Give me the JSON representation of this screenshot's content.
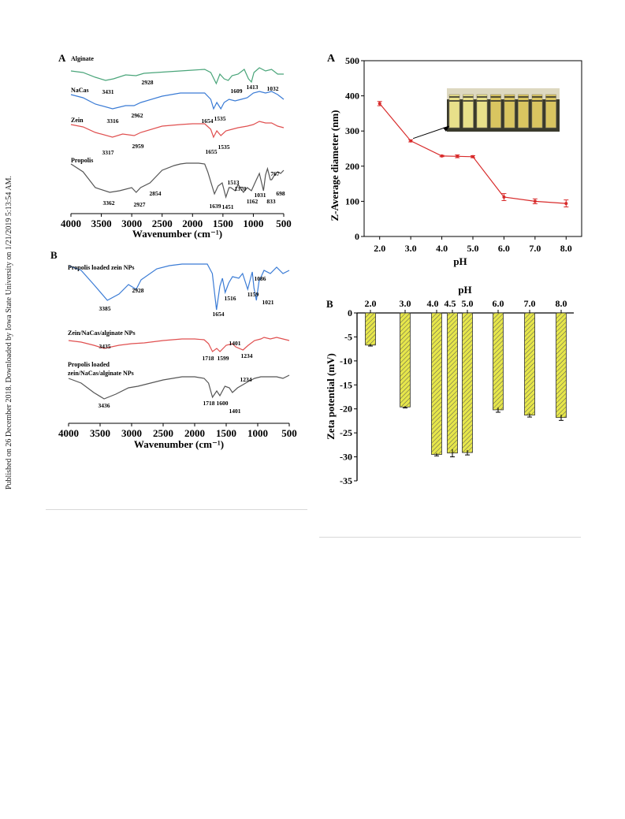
{
  "side_note": "Published on 26 December 2018. Downloaded by Iowa State University on 1/21/2019 5:13:54 AM.",
  "colors": {
    "green": "#4aa57a",
    "blue": "#3a7bd5",
    "red": "#e05050",
    "gray": "#555555",
    "line_red": "#d82b2b",
    "bar_fill": "#e6e64a",
    "bar_stroke": "#333333"
  },
  "ftir_a": {
    "panel_label": "A",
    "xlabel": "Wavenumber (cm⁻¹)",
    "xticks": [
      "4000",
      "3500",
      "3000",
      "2500",
      "2000",
      "1500",
      "1000",
      "500"
    ],
    "spectra": [
      {
        "name": "Alginate",
        "peaks": [
          "3431",
          "2928",
          "1609",
          "1413",
          "1032"
        ]
      },
      {
        "name": "NaCas",
        "peaks": [
          "3316",
          "2962",
          "1654",
          "1535"
        ]
      },
      {
        "name": "Zein",
        "peaks": [
          "3317",
          "2959",
          "1655",
          "1535"
        ]
      },
      {
        "name": "Propolis",
        "peaks": [
          "3362",
          "2927",
          "2854",
          "1639",
          "1451",
          "1513",
          "1370",
          "1162",
          "1031",
          "833",
          "767",
          "698"
        ]
      }
    ]
  },
  "ftir_b": {
    "panel_label": "B",
    "xlabel": "Wavenumber (cm⁻¹)",
    "xticks": [
      "4000",
      "3500",
      "3000",
      "2500",
      "2000",
      "1500",
      "1000",
      "500"
    ],
    "spectra": [
      {
        "name": "Propolis loaded zein NPs",
        "peaks": [
          "3385",
          "2928",
          "1654",
          "1516",
          "1159",
          "1086",
          "1021"
        ]
      },
      {
        "name": "Zein/NaCas/alginate NPs",
        "peaks": [
          "3435",
          "1718",
          "1599",
          "1401",
          "1234"
        ]
      },
      {
        "name": "Propolis loaded",
        "name2": "zein/NaCas/alginate NPs",
        "peaks": [
          "3436",
          "1718",
          "1600",
          "1401",
          "1234"
        ]
      }
    ]
  },
  "chart_data": [
    {
      "type": "line",
      "panel_label": "A",
      "xlabel": "pH",
      "ylabel": "Z-Average diameter (nm)",
      "x": [
        2.0,
        3.0,
        4.0,
        4.5,
        5.0,
        6.0,
        7.0,
        8.0
      ],
      "y": [
        378,
        272,
        229,
        228,
        227,
        112,
        100,
        94
      ],
      "error": [
        6,
        3,
        2,
        4,
        3,
        10,
        7,
        10
      ],
      "xlim": [
        1.5,
        8.5
      ],
      "ylim": [
        0,
        500
      ],
      "xticks": [
        "2.0",
        "3.0",
        "4.0",
        "5.0",
        "6.0",
        "7.0",
        "8.0"
      ],
      "yticks": [
        "0",
        "100",
        "200",
        "300",
        "400",
        "500"
      ],
      "inset": "photo of sample vials"
    },
    {
      "type": "bar",
      "panel_label": "B",
      "xlabel": "pH",
      "ylabel": "Zeta potential (mV)",
      "categories": [
        "2.0",
        "3.0",
        "4.0",
        "4.5",
        "5.0",
        "6.0",
        "7.0",
        "8.0"
      ],
      "values": [
        -6.7,
        -19.6,
        -29.5,
        -29.2,
        -29.1,
        -20.2,
        -21.3,
        -21.8
      ],
      "error": [
        0.2,
        0.2,
        0.3,
        0.8,
        0.5,
        0.5,
        0.4,
        0.6
      ],
      "ylim": [
        -35,
        0
      ],
      "yticks": [
        "0",
        "-5",
        "-10",
        "-15",
        "-20",
        "-25",
        "-30",
        "-35"
      ],
      "xtick_labels": [
        "2.0",
        "3.0",
        "4.0",
        "4.5",
        "5.0",
        "6.0",
        "7.0",
        "8.0"
      ]
    }
  ]
}
